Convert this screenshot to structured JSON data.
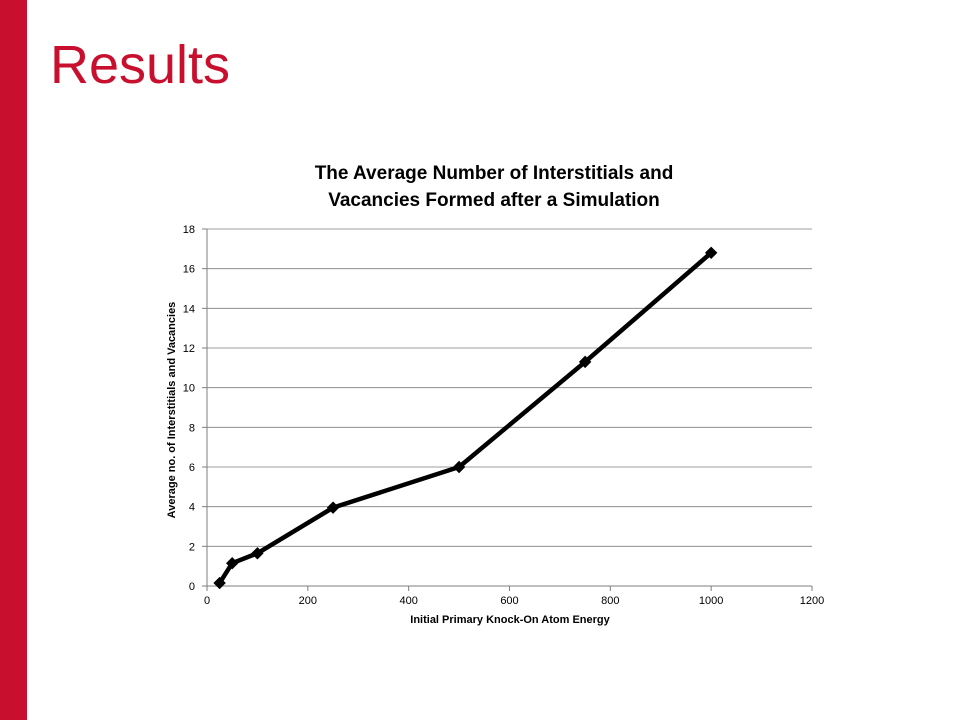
{
  "slide": {
    "title": "Results",
    "accent_color": "#c8102e"
  },
  "chart_data": {
    "type": "line",
    "title_lines": [
      "The Average Number of Interstitials and",
      "Vacancies Formed after a Simulation"
    ],
    "xlabel": "Initial Primary Knock-On Atom Energy",
    "ylabel": "Average no. of Interstitials and Vacancies",
    "xlim": [
      0,
      1200
    ],
    "ylim": [
      0,
      18
    ],
    "xticks": [
      0,
      200,
      400,
      600,
      800,
      1000,
      1200
    ],
    "yticks": [
      0,
      2,
      4,
      6,
      8,
      10,
      12,
      14,
      16,
      18
    ],
    "grid": "horizontal",
    "legend": "none",
    "series": [
      {
        "color": "#000000",
        "marker": "diamond",
        "x": [
          25,
          50,
          100,
          250,
          500,
          750,
          1000
        ],
        "y": [
          0.15,
          1.15,
          1.65,
          3.95,
          6.0,
          11.3,
          16.8
        ]
      }
    ]
  }
}
